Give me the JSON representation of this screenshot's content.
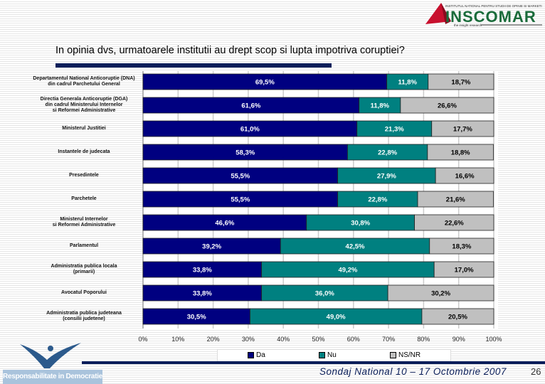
{
  "header": {
    "logo_text": "INSCOMAR",
    "logo_tagline": "the insight research",
    "logo_subtitle": "INSTITUTUL NATIONAL PENTRU STUDII DE OPINIE SI MARKETING"
  },
  "footer": {
    "survey": "Sondaj National 10 – 17 Octombrie  2007",
    "page": "26",
    "logo_text": "Responsabilitate in Democratie"
  },
  "colors": {
    "Da": "#000080",
    "Nu": "#008080",
    "NS/NR": "#c0c0c0",
    "accent": "#0a1e5a"
  },
  "chart_data": {
    "type": "bar",
    "orientation": "horizontal-stacked-100",
    "title": "In opinia dvs, urmatoarele institutii au drept scop si lupta  impotriva coruptiei?",
    "categories": [
      "Departamentul National Anticoruptie (DNA)\ndin cadrul Parchetului General",
      "Directia Generala Anticoruptie (DGA)\ndin cadrul Ministerului Internelor\nsi Reformei Administrative",
      "Ministerul Justitiei",
      "Instantele de judecata",
      "Presedintele",
      "Parchetele",
      "Ministerul Internelor\nsi Reformei Administrative",
      "Parlamentul",
      "Administratia publica locala\n(primarii)",
      "Avocatul Poporului",
      "Administratia publica judeteana\n(consilii judetene)"
    ],
    "series": [
      {
        "name": "Da",
        "values": [
          69.5,
          61.6,
          61.0,
          58.3,
          55.5,
          55.5,
          46.6,
          39.2,
          33.8,
          33.8,
          30.5
        ]
      },
      {
        "name": "Nu",
        "values": [
          11.8,
          11.8,
          21.3,
          22.8,
          27.9,
          22.8,
          30.8,
          42.5,
          49.2,
          36.0,
          49.0
        ]
      },
      {
        "name": "NS/NR",
        "values": [
          18.7,
          26.6,
          17.7,
          18.8,
          16.6,
          21.6,
          22.6,
          18.3,
          17.0,
          30.2,
          20.5
        ]
      }
    ],
    "xticks": [
      "0%",
      "10%",
      "20%",
      "30%",
      "40%",
      "50%",
      "60%",
      "70%",
      "80%",
      "90%",
      "100%"
    ],
    "xlim": [
      0,
      100
    ],
    "grid": "vertical",
    "legend": "bottom"
  }
}
